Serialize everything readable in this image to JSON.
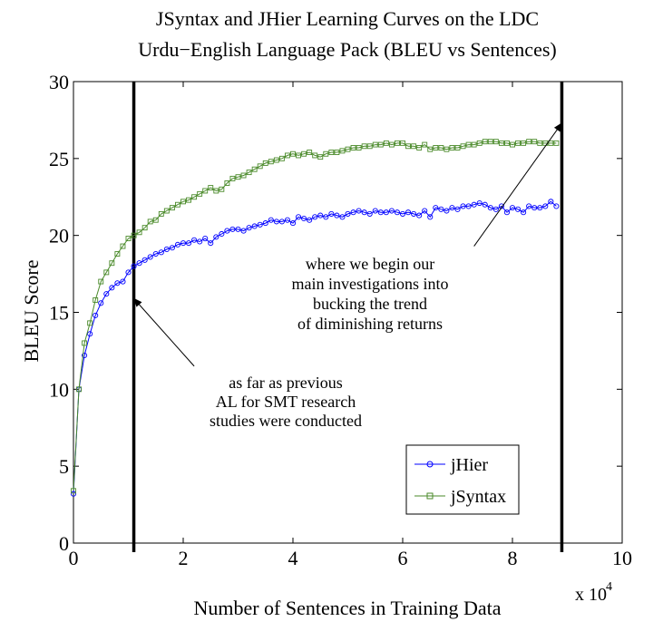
{
  "chart_data": {
    "type": "line",
    "title_lines": [
      "JSyntax and JHier Learning Curves on the LDC",
      "Urdu−English Language Pack (BLEU vs Sentences)"
    ],
    "xlabel": "Number of Sentences in Training Data",
    "ylabel": "BLEU Score",
    "x_multiplier_label": "x 10",
    "x_multiplier_exponent": "4",
    "xlim": [
      0,
      10
    ],
    "ylim": [
      0,
      30
    ],
    "x_ticks": [
      0,
      2,
      4,
      6,
      8,
      10
    ],
    "x_tick_labels": [
      "0",
      "2",
      "4",
      "6",
      "8",
      "10"
    ],
    "y_ticks": [
      0,
      5,
      10,
      15,
      20,
      25,
      30
    ],
    "y_tick_labels": [
      "0",
      "5",
      "10",
      "15",
      "20",
      "25",
      "30"
    ],
    "grid": false,
    "legend_position": "bottom-right",
    "vertical_lines_x": [
      1.1,
      8.9
    ],
    "annotations": [
      {
        "lines": [
          "as far as previous",
          "AL for SMT research",
          "studies were conducted"
        ],
        "arrow_from": [
          2.2,
          11.5
        ],
        "arrow_to": [
          1.1,
          15.9
        ]
      },
      {
        "lines": [
          "where we begin our",
          "main investigations into",
          "bucking the trend",
          "of diminishing returns"
        ],
        "arrow_from": [
          7.3,
          19.3
        ],
        "arrow_to": [
          8.9,
          27.3
        ]
      }
    ],
    "series": [
      {
        "name": "jHier",
        "color": "#0000ff",
        "marker": "circle",
        "x": [
          0.0,
          0.1,
          0.2,
          0.3,
          0.4,
          0.5,
          0.6,
          0.7,
          0.8,
          0.9,
          1.0,
          1.1,
          1.2,
          1.3,
          1.4,
          1.5,
          1.6,
          1.7,
          1.8,
          1.9,
          2.0,
          2.1,
          2.2,
          2.3,
          2.4,
          2.5,
          2.6,
          2.7,
          2.8,
          2.9,
          3.0,
          3.1,
          3.2,
          3.3,
          3.4,
          3.5,
          3.6,
          3.7,
          3.8,
          3.9,
          4.0,
          4.1,
          4.2,
          4.3,
          4.4,
          4.5,
          4.6,
          4.7,
          4.8,
          4.9,
          5.0,
          5.1,
          5.2,
          5.3,
          5.4,
          5.5,
          5.6,
          5.7,
          5.8,
          5.9,
          6.0,
          6.1,
          6.2,
          6.3,
          6.4,
          6.5,
          6.6,
          6.7,
          6.8,
          6.9,
          7.0,
          7.1,
          7.2,
          7.3,
          7.4,
          7.5,
          7.6,
          7.7,
          7.8,
          7.9,
          8.0,
          8.1,
          8.2,
          8.3,
          8.4,
          8.5,
          8.6,
          8.7,
          8.8
        ],
        "y": [
          3.2,
          10.0,
          12.2,
          13.6,
          14.8,
          15.6,
          16.2,
          16.6,
          16.9,
          17.0,
          17.6,
          18.0,
          18.2,
          18.4,
          18.6,
          18.8,
          18.9,
          19.1,
          19.2,
          19.4,
          19.5,
          19.5,
          19.7,
          19.6,
          19.8,
          19.5,
          19.9,
          20.1,
          20.3,
          20.4,
          20.4,
          20.3,
          20.5,
          20.6,
          20.7,
          20.8,
          21.0,
          20.9,
          20.9,
          21.0,
          20.8,
          21.2,
          21.1,
          21.0,
          21.2,
          21.3,
          21.2,
          21.4,
          21.3,
          21.2,
          21.4,
          21.5,
          21.6,
          21.5,
          21.4,
          21.6,
          21.5,
          21.5,
          21.6,
          21.5,
          21.4,
          21.5,
          21.4,
          21.3,
          21.6,
          21.2,
          21.8,
          21.7,
          21.6,
          21.8,
          21.7,
          21.9,
          21.9,
          22.0,
          22.1,
          22.0,
          21.8,
          21.7,
          21.9,
          21.5,
          21.8,
          21.7,
          21.5,
          21.9,
          21.8,
          21.8,
          21.9,
          22.2,
          21.9
        ]
      },
      {
        "name": "jSyntax",
        "color": "#4a8a2a",
        "marker": "square",
        "x": [
          0.0,
          0.1,
          0.2,
          0.3,
          0.4,
          0.5,
          0.6,
          0.7,
          0.8,
          0.9,
          1.0,
          1.1,
          1.2,
          1.3,
          1.4,
          1.5,
          1.6,
          1.7,
          1.8,
          1.9,
          2.0,
          2.1,
          2.2,
          2.3,
          2.4,
          2.5,
          2.6,
          2.7,
          2.8,
          2.9,
          3.0,
          3.1,
          3.2,
          3.3,
          3.4,
          3.5,
          3.6,
          3.7,
          3.8,
          3.9,
          4.0,
          4.1,
          4.2,
          4.3,
          4.4,
          4.5,
          4.6,
          4.7,
          4.8,
          4.9,
          5.0,
          5.1,
          5.2,
          5.3,
          5.4,
          5.5,
          5.6,
          5.7,
          5.8,
          5.9,
          6.0,
          6.1,
          6.2,
          6.3,
          6.4,
          6.5,
          6.6,
          6.7,
          6.8,
          6.9,
          7.0,
          7.1,
          7.2,
          7.3,
          7.4,
          7.5,
          7.6,
          7.7,
          7.8,
          7.9,
          8.0,
          8.1,
          8.2,
          8.3,
          8.4,
          8.5,
          8.6,
          8.7,
          8.8
        ],
        "y": [
          3.4,
          10.0,
          13.0,
          14.3,
          15.8,
          17.0,
          17.6,
          18.2,
          18.8,
          19.3,
          19.8,
          20.0,
          20.2,
          20.5,
          20.9,
          21.0,
          21.4,
          21.6,
          21.8,
          22.0,
          22.2,
          22.3,
          22.5,
          22.7,
          22.9,
          23.1,
          22.9,
          23.0,
          23.4,
          23.7,
          23.8,
          23.9,
          24.1,
          24.3,
          24.5,
          24.7,
          24.8,
          24.9,
          25.0,
          25.2,
          25.3,
          25.2,
          25.3,
          25.4,
          25.2,
          25.1,
          25.3,
          25.4,
          25.4,
          25.5,
          25.6,
          25.7,
          25.7,
          25.8,
          25.8,
          25.9,
          25.9,
          26.0,
          25.9,
          26.0,
          26.0,
          25.8,
          25.8,
          25.7,
          25.9,
          25.6,
          25.7,
          25.7,
          25.6,
          25.7,
          25.7,
          25.8,
          25.9,
          25.9,
          26.0,
          26.1,
          26.1,
          26.1,
          26.0,
          26.0,
          25.9,
          26.0,
          26.0,
          26.1,
          26.1,
          26.0,
          26.0,
          26.0,
          26.0
        ]
      }
    ]
  }
}
